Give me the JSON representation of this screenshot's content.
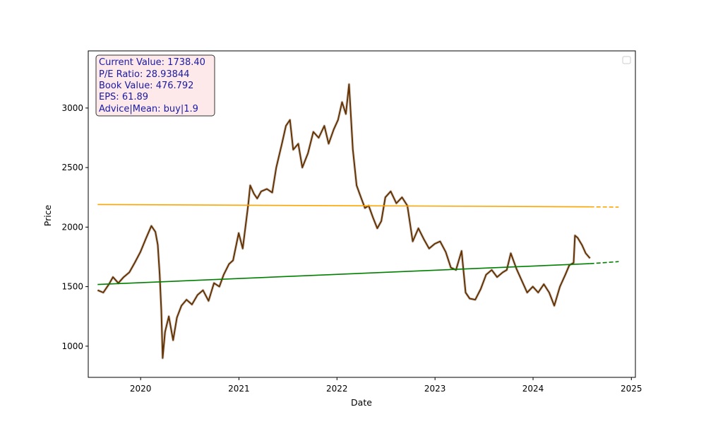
{
  "chart_data": {
    "type": "line",
    "title": "",
    "xlabel": "Date",
    "ylabel": "Price",
    "xlim": [
      "2019-06-20",
      "2025-01-16"
    ],
    "ylim": [
      738,
      3480
    ],
    "x_ticks": [
      "2020",
      "2021",
      "2022",
      "2023",
      "2024",
      "2025"
    ],
    "y_ticks": [
      1000,
      1500,
      2000,
      2500,
      3000
    ],
    "grid": false,
    "legend": "top-right",
    "colors": {
      "price": "#663300",
      "range": "#d9d9d9",
      "trend_upper": "#ffa500",
      "trend_lower": "#008000",
      "info_text": "#1a1aa6",
      "info_bg": "#fde8ea"
    },
    "info_box": {
      "lines": [
        "Current Value: 1738.40",
        "P/E Ratio: 28.93844",
        "Book Value: 476.792",
        "EPS: 61.89",
        "Advice|Mean: buy|1.9"
      ]
    },
    "series": [
      {
        "role": "price",
        "x": [
          "2019-07-25",
          "2019-08-15",
          "2019-09-05",
          "2019-09-20",
          "2019-10-10",
          "2019-10-30",
          "2019-11-20",
          "2019-12-10",
          "2019-12-31",
          "2020-01-20",
          "2020-02-10",
          "2020-02-25",
          "2020-03-05",
          "2020-03-12",
          "2020-03-18",
          "2020-03-23",
          "2020-04-01",
          "2020-04-15",
          "2020-05-01",
          "2020-05-15",
          "2020-06-01",
          "2020-06-20",
          "2020-07-10",
          "2020-07-31",
          "2020-08-20",
          "2020-09-10",
          "2020-09-30",
          "2020-10-20",
          "2020-11-05",
          "2020-11-25",
          "2020-12-10",
          "2020-12-31",
          "2021-01-15",
          "2021-01-29",
          "2021-02-05",
          "2021-02-12",
          "2021-02-26",
          "2021-03-10",
          "2021-03-25",
          "2021-04-15",
          "2021-05-05",
          "2021-05-20",
          "2021-06-10",
          "2021-06-25",
          "2021-07-10",
          "2021-07-22",
          "2021-08-10",
          "2021-08-25",
          "2021-09-15",
          "2021-10-05",
          "2021-10-25",
          "2021-11-15",
          "2021-12-01",
          "2021-12-20",
          "2022-01-05",
          "2022-01-20",
          "2022-02-03",
          "2022-02-15",
          "2022-03-01",
          "2022-03-15",
          "2022-03-31",
          "2022-04-15",
          "2022-04-29",
          "2022-05-15",
          "2022-05-31",
          "2022-06-15",
          "2022-06-30",
          "2022-07-20",
          "2022-08-10",
          "2022-08-31",
          "2022-09-20",
          "2022-10-10",
          "2022-10-31",
          "2022-11-20",
          "2022-12-10",
          "2022-12-31",
          "2023-01-20",
          "2023-02-10",
          "2023-03-01",
          "2023-03-20",
          "2023-04-10",
          "2023-04-25",
          "2023-05-10",
          "2023-05-31",
          "2023-06-20",
          "2023-07-10",
          "2023-07-31",
          "2023-08-20",
          "2023-09-10",
          "2023-09-25",
          "2023-10-10",
          "2023-10-31",
          "2023-11-20",
          "2023-12-10",
          "2023-12-31",
          "2024-01-20",
          "2024-02-10",
          "2024-03-01",
          "2024-03-20",
          "2024-04-10",
          "2024-04-30",
          "2024-05-15",
          "2024-05-31",
          "2024-06-05",
          "2024-06-15",
          "2024-07-01",
          "2024-07-15",
          "2024-07-31"
        ],
        "y": [
          1470,
          1450,
          1520,
          1580,
          1530,
          1580,
          1620,
          1700,
          1790,
          1900,
          2010,
          1960,
          1850,
          1600,
          1300,
          900,
          1120,
          1250,
          1050,
          1240,
          1340,
          1390,
          1350,
          1430,
          1470,
          1380,
          1530,
          1500,
          1600,
          1690,
          1720,
          1950,
          1820,
          2070,
          2200,
          2350,
          2280,
          2240,
          2300,
          2320,
          2290,
          2500,
          2700,
          2850,
          2900,
          2650,
          2700,
          2500,
          2620,
          2800,
          2750,
          2850,
          2700,
          2820,
          2900,
          3050,
          2950,
          3200,
          2650,
          2350,
          2250,
          2160,
          2180,
          2080,
          1990,
          2050,
          2250,
          2300,
          2200,
          2250,
          2180,
          1880,
          1990,
          1900,
          1820,
          1860,
          1880,
          1790,
          1660,
          1640,
          1800,
          1450,
          1400,
          1390,
          1480,
          1600,
          1640,
          1580,
          1620,
          1640,
          1780,
          1650,
          1550,
          1450,
          1500,
          1450,
          1520,
          1450,
          1340,
          1500,
          1600,
          1680,
          1700,
          1930,
          1910,
          1850,
          1780,
          1738
        ]
      },
      {
        "role": "trend-upper",
        "x": [
          "2019-07-25",
          "2024-07-31",
          "2024-11-15"
        ],
        "y": [
          2190,
          2170,
          2168
        ],
        "style": [
          "solid",
          "dashed"
        ]
      },
      {
        "role": "trend-lower",
        "x": [
          "2019-07-25",
          "2024-07-31",
          "2024-11-15"
        ],
        "y": [
          1518,
          1693,
          1710
        ],
        "style": [
          "solid",
          "dashed"
        ]
      }
    ]
  }
}
